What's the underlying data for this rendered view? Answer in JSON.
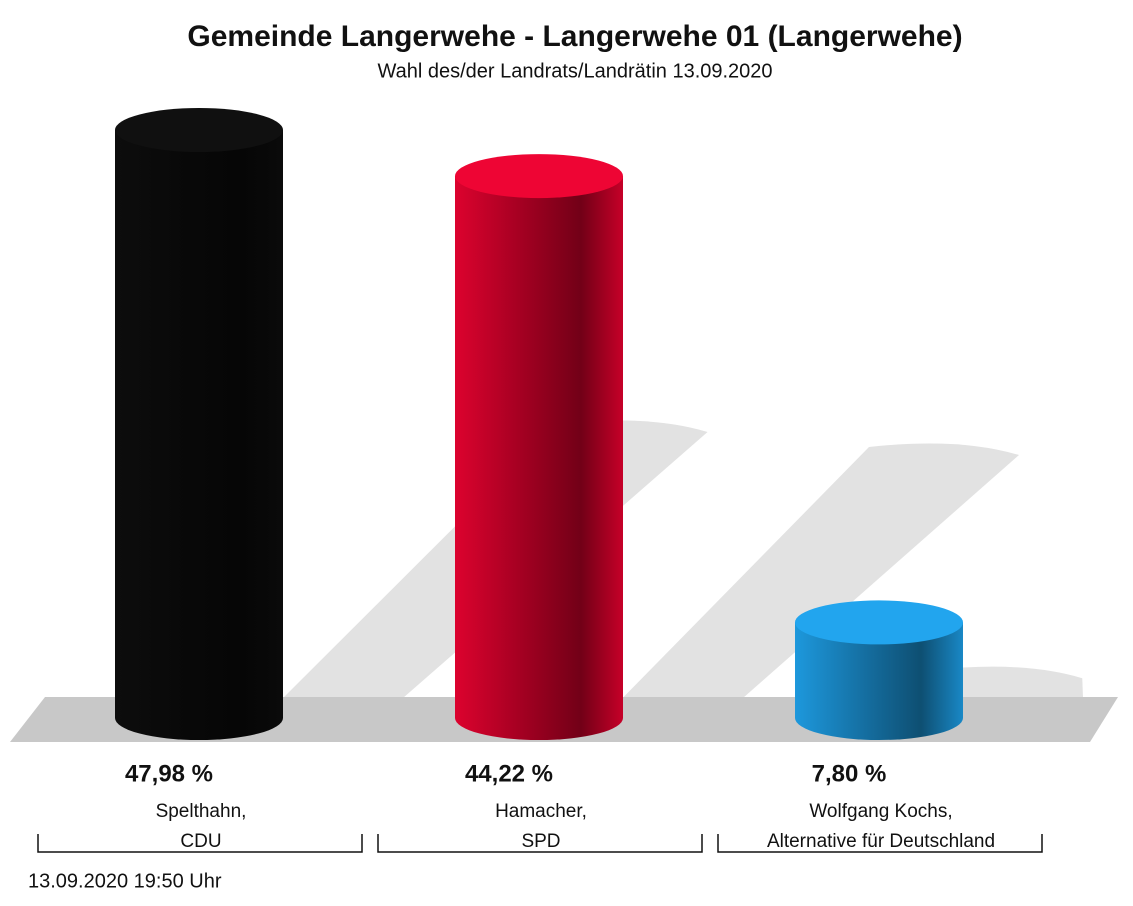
{
  "chart_data": {
    "type": "bar",
    "title": "Gemeinde Langerwehe - Langerwehe 01 (Langerwehe)",
    "subtitle": "Wahl des/der Landrats/Landrätin 13.09.2020",
    "categories": [
      [
        "Spelthahn,",
        "CDU"
      ],
      [
        "Hamacher,",
        "SPD"
      ],
      [
        "Wolfgang Kochs,",
        "Alternative für Deutschland"
      ]
    ],
    "values": [
      47.98,
      44.22,
      7.8
    ],
    "value_labels": [
      "47,98 %",
      "44,22 %",
      "7,80 %"
    ],
    "colors": [
      "#0a0a0a",
      "#d0002a",
      "#1a8fd0"
    ],
    "timestamp": "13.09.2020 19:50 Uhr"
  }
}
